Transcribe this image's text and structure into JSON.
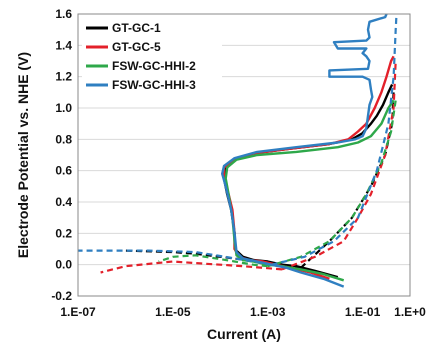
{
  "chart_data": {
    "type": "line",
    "title": "",
    "xlabel": "Current (A)",
    "ylabel": "Electrode Potential vs. NHE (V)",
    "x_scale": "log",
    "xlim": [
      1e-07,
      1
    ],
    "ylim": [
      -0.2,
      1.6
    ],
    "x_ticks": [
      1e-07,
      1e-05,
      0.001,
      0.1,
      1
    ],
    "x_tick_labels": [
      "1.E-07",
      "1.E-05",
      "1.E-03",
      "1.E-01",
      "1.E+0"
    ],
    "y_ticks": [
      -0.2,
      0.0,
      0.2,
      0.4,
      0.6,
      0.8,
      1.0,
      1.2,
      1.4,
      1.6
    ],
    "y_tick_labels": [
      "-0.2",
      "0.0",
      "0.2",
      "0.4",
      "0.6",
      "0.8",
      "1.0",
      "1.2",
      "1.4",
      "1.6"
    ],
    "grid": "horizontal",
    "legend_position": "top-left",
    "series": [
      {
        "name": "GT-GC-1",
        "color": "#000000",
        "solid": [
          [
            0.03,
            -0.08
          ],
          [
            0.01,
            -0.04
          ],
          [
            0.004,
            -0.01
          ],
          [
            0.002,
            0.0
          ],
          [
            0.001,
            0.02
          ],
          [
            0.0005,
            0.03
          ],
          [
            0.0003,
            0.05
          ],
          [
            0.0002,
            0.1
          ],
          [
            0.0002,
            0.2
          ],
          [
            0.00017,
            0.35
          ],
          [
            0.00014,
            0.45
          ],
          [
            0.00012,
            0.55
          ],
          [
            0.00013,
            0.62
          ],
          [
            0.0002,
            0.67
          ],
          [
            0.0005,
            0.71
          ],
          [
            0.003,
            0.74
          ],
          [
            0.02,
            0.77
          ],
          [
            0.06,
            0.8
          ],
          [
            0.1,
            0.84
          ],
          [
            0.15,
            0.9
          ],
          [
            0.2,
            0.95
          ],
          [
            0.27,
            1.02
          ],
          [
            0.35,
            1.1
          ],
          [
            0.42,
            1.15
          ]
        ],
        "dashed": [
          [
            0.005,
            -0.02
          ],
          [
            0.002,
            0.0
          ],
          [
            0.001,
            0.01
          ],
          [
            0.00035,
            0.03
          ],
          [
            0.0001,
            0.05
          ],
          [
            3e-05,
            0.07
          ],
          [
            1e-05,
            0.08
          ],
          [
            3e-06,
            0.085
          ],
          [
            1e-06,
            0.09
          ]
        ],
        "dashed_upper": [
          [
            0.005,
            -0.02
          ],
          [
            0.02,
            0.15
          ],
          [
            0.06,
            0.3
          ],
          [
            0.15,
            0.5
          ],
          [
            0.3,
            0.7
          ],
          [
            0.42,
            0.9
          ],
          [
            0.45,
            1.1
          ]
        ]
      },
      {
        "name": "GT-GC-5",
        "color": "#e3202a",
        "solid": [
          [
            0.02,
            -0.09
          ],
          [
            0.008,
            -0.05
          ],
          [
            0.003,
            -0.02
          ],
          [
            0.0015,
            0.0
          ],
          [
            0.0008,
            0.02
          ],
          [
            0.0004,
            0.03
          ],
          [
            0.00025,
            0.05
          ],
          [
            0.0002,
            0.1
          ],
          [
            0.0002,
            0.2
          ],
          [
            0.00018,
            0.35
          ],
          [
            0.00015,
            0.45
          ],
          [
            0.00012,
            0.55
          ],
          [
            0.00012,
            0.62
          ],
          [
            0.0002,
            0.67
          ],
          [
            0.0005,
            0.71
          ],
          [
            0.003,
            0.74
          ],
          [
            0.02,
            0.77
          ],
          [
            0.05,
            0.8
          ],
          [
            0.08,
            0.85
          ],
          [
            0.12,
            0.9
          ],
          [
            0.18,
            1.0
          ],
          [
            0.25,
            1.1
          ],
          [
            0.32,
            1.2
          ],
          [
            0.4,
            1.3
          ],
          [
            0.45,
            1.33
          ]
        ],
        "dashed": [
          [
            0.002,
            -0.03
          ],
          [
            0.0008,
            -0.02
          ],
          [
            0.0003,
            -0.01
          ],
          [
            0.0001,
            0.0
          ],
          [
            3e-05,
            0.01
          ],
          [
            1e-05,
            0.02
          ],
          [
            1e-06,
            -0.01
          ],
          [
            3e-07,
            -0.05
          ]
        ],
        "dashed_upper": [
          [
            0.002,
            -0.03
          ],
          [
            0.01,
            0.05
          ],
          [
            0.04,
            0.15
          ],
          [
            0.08,
            0.3
          ],
          [
            0.15,
            0.45
          ],
          [
            0.3,
            0.7
          ],
          [
            0.45,
            1.0
          ],
          [
            0.5,
            1.3
          ]
        ]
      },
      {
        "name": "FSW-GC-HHI-2",
        "color": "#2ea84a",
        "solid": [
          [
            0.04,
            -0.1
          ],
          [
            0.015,
            -0.06
          ],
          [
            0.005,
            -0.03
          ],
          [
            0.002,
            -0.01
          ],
          [
            0.001,
            0.0
          ],
          [
            0.0005,
            0.02
          ],
          [
            0.0003,
            0.03
          ],
          [
            0.00022,
            0.06
          ],
          [
            0.0002,
            0.15
          ],
          [
            0.00018,
            0.3
          ],
          [
            0.00015,
            0.45
          ],
          [
            0.00013,
            0.55
          ],
          [
            0.00014,
            0.62
          ],
          [
            0.00022,
            0.67
          ],
          [
            0.0006,
            0.7
          ],
          [
            0.004,
            0.72
          ],
          [
            0.03,
            0.75
          ],
          [
            0.08,
            0.78
          ],
          [
            0.15,
            0.82
          ],
          [
            0.25,
            0.9
          ],
          [
            0.35,
            1.0
          ],
          [
            0.45,
            1.05
          ]
        ],
        "dashed": [
          [
            0.001,
            -0.01
          ],
          [
            0.0005,
            0.0
          ],
          [
            0.0002,
            0.02
          ],
          [
            8e-05,
            0.04
          ],
          [
            3e-05,
            0.06
          ],
          [
            1e-05,
            0.05
          ],
          [
            5e-06,
            0.02
          ]
        ],
        "dashed_upper": [
          [
            0.001,
            -0.01
          ],
          [
            0.005,
            0.05
          ],
          [
            0.02,
            0.15
          ],
          [
            0.06,
            0.3
          ],
          [
            0.12,
            0.45
          ],
          [
            0.25,
            0.65
          ],
          [
            0.4,
            0.85
          ],
          [
            0.5,
            1.05
          ]
        ]
      },
      {
        "name": "FSW-GC-HHI-3",
        "color": "#2f7fc1",
        "solid": [
          [
            0.04,
            -0.14
          ],
          [
            0.015,
            -0.09
          ],
          [
            0.005,
            -0.05
          ],
          [
            0.0025,
            -0.02
          ],
          [
            0.0012,
            0.0
          ],
          [
            0.0006,
            0.02
          ],
          [
            0.0003,
            0.04
          ],
          [
            0.00022,
            0.08
          ],
          [
            0.0002,
            0.2
          ],
          [
            0.00017,
            0.35
          ],
          [
            0.00013,
            0.5
          ],
          [
            0.00011,
            0.58
          ],
          [
            0.00012,
            0.63
          ],
          [
            0.0002,
            0.68
          ],
          [
            0.0006,
            0.72
          ],
          [
            0.004,
            0.75
          ],
          [
            0.03,
            0.78
          ],
          [
            0.07,
            0.8
          ],
          [
            0.1,
            0.82
          ],
          [
            0.12,
            0.87
          ],
          [
            0.13,
            0.95
          ],
          [
            0.14,
            1.02
          ],
          [
            0.16,
            1.07
          ],
          [
            0.15,
            1.12
          ],
          [
            0.14,
            1.18
          ],
          [
            0.1,
            1.2
          ],
          [
            0.02,
            1.2
          ],
          [
            0.02,
            1.24
          ],
          [
            0.13,
            1.25
          ],
          [
            0.14,
            1.3
          ],
          [
            0.12,
            1.33
          ],
          [
            0.1,
            1.35
          ],
          [
            0.12,
            1.38
          ],
          [
            0.03,
            1.38
          ],
          [
            0.025,
            1.42
          ],
          [
            0.12,
            1.43
          ],
          [
            0.14,
            1.45
          ],
          [
            0.13,
            1.5
          ],
          [
            0.14,
            1.55
          ],
          [
            0.3,
            1.58
          ],
          [
            0.32,
            1.6
          ]
        ],
        "dashed": [
          [
            0.0012,
            0.0
          ],
          [
            0.0005,
            0.02
          ],
          [
            0.0002,
            0.04
          ],
          [
            8e-05,
            0.06
          ],
          [
            3e-05,
            0.08
          ],
          [
            1e-05,
            0.085
          ],
          [
            3e-06,
            0.09
          ],
          [
            1e-06,
            0.09
          ],
          [
            3e-07,
            0.09
          ],
          [
            1e-07,
            0.09
          ]
        ],
        "dashed_upper": [
          [
            0.0012,
            0.0
          ],
          [
            0.006,
            0.05
          ],
          [
            0.025,
            0.15
          ],
          [
            0.08,
            0.3
          ],
          [
            0.2,
            0.6
          ],
          [
            0.35,
            0.9
          ],
          [
            0.45,
            1.2
          ],
          [
            0.5,
            1.5
          ],
          [
            0.52,
            1.6
          ]
        ]
      }
    ]
  }
}
